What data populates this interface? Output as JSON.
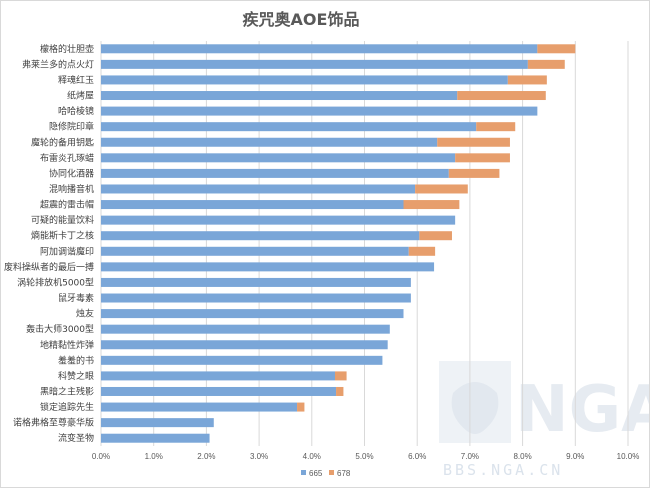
{
  "chart_data": {
    "type": "bar",
    "orientation": "horizontal",
    "stacked": true,
    "title": "疾咒奥AOE饰品",
    "categories": [
      "檬格的壮胆壶",
      "弗莱兰多的点火灯",
      "释魂红玉",
      "纸烤屋",
      "哈哈棱镜",
      "隐修院印章",
      "魔轮的备用钥匙",
      "布雷炎孔琢蜡",
      "协同化酒器",
      "混响播音机",
      "超震的雷击帽",
      "可疑的能量饮料",
      "熵能斯卡丁之核",
      "阿加调谐魔印",
      "废料操纵者的最后一搏",
      "涡轮排放机5000型",
      "鼠牙毒素",
      "烛友",
      "轰击大师3000型",
      "地精黏性炸弹",
      "羞羞的书",
      "科赞之眼",
      "黑暗之主残影",
      "锁定追踪先生",
      "诺格弗格至尊豪华版",
      "流变圣物"
    ],
    "series": [
      {
        "name": "665",
        "color": "#7aa6d8",
        "values": [
          8.28,
          8.1,
          7.72,
          6.76,
          8.28,
          7.12,
          6.38,
          6.72,
          6.6,
          5.96,
          5.74,
          6.72,
          6.04,
          5.84,
          6.32,
          5.88,
          5.88,
          5.74,
          5.48,
          5.44,
          5.34,
          4.44,
          4.46,
          3.72,
          2.14,
          2.06
        ]
      },
      {
        "name": "678",
        "color": "#e79e6c",
        "values": [
          0.72,
          0.7,
          0.74,
          1.68,
          0,
          0.74,
          1.38,
          1.04,
          0.96,
          1.0,
          1.06,
          0,
          0.62,
          0.5,
          0,
          0,
          0,
          0,
          0,
          0,
          0,
          0.22,
          0.14,
          0.14,
          0,
          0
        ]
      }
    ],
    "xlim": [
      0,
      10
    ],
    "xticks": [
      "0.0%",
      "1.0%",
      "2.0%",
      "3.0%",
      "4.0%",
      "5.0%",
      "6.0%",
      "7.0%",
      "8.0%",
      "9.0%",
      "10.0%"
    ],
    "grid": true,
    "legend": "bottom",
    "watermark": {
      "logo_text": "NGA",
      "url": "BBS.NGA.CN"
    }
  }
}
